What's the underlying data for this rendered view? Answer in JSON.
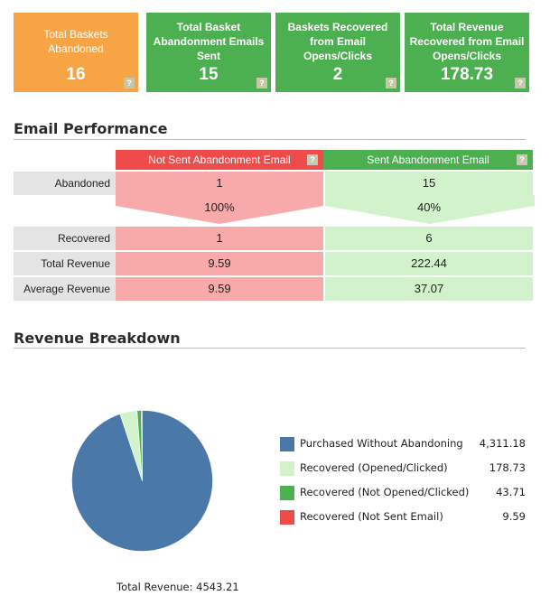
{
  "kpis": [
    {
      "title": "Total Baskets Abandoned",
      "value": "16",
      "color": "#f7a444",
      "help": "?"
    },
    {
      "title": "Total Basket Abandonment Emails Sent",
      "value": "15",
      "color": "#4caf50",
      "help": "?"
    },
    {
      "title": "Baskets Recovered from Email Opens/Clicks",
      "value": "2",
      "color": "#4caf50",
      "help": "?"
    },
    {
      "title": "Total Revenue Recovered from Email Opens/Clicks",
      "value": "178.73",
      "color": "#4caf50",
      "help": "?"
    }
  ],
  "email_performance": {
    "title": "Email Performance",
    "columns": [
      {
        "label": "Not Sent Abandonment Email",
        "help": "?",
        "color": "#ef4b4b"
      },
      {
        "label": "Sent Abandonment Email",
        "help": "?",
        "color": "#4caf50"
      }
    ],
    "abandoned": {
      "label": "Abandoned",
      "not_sent": "1",
      "sent": "15"
    },
    "recovery_rate": {
      "not_sent": "100%",
      "sent": "40%"
    },
    "rows": [
      {
        "label": "Recovered",
        "not_sent": "1",
        "sent": "6"
      },
      {
        "label": "Total Revenue",
        "not_sent": "9.59",
        "sent": "222.44"
      },
      {
        "label": "Average Revenue",
        "not_sent": "9.59",
        "sent": "37.07"
      }
    ]
  },
  "revenue_breakdown": {
    "title": "Revenue Breakdown",
    "total_label": "Total Revenue: 4543.21",
    "legend": [
      {
        "label": "Purchased Without Abandoning",
        "value": "4,311.18",
        "color": "#4a78a8"
      },
      {
        "label": "Recovered (Opened/Clicked)",
        "value": "178.73",
        "color": "#d2f2cc"
      },
      {
        "label": "Recovered (Not Opened/Clicked)",
        "value": "43.71",
        "color": "#4caf50"
      },
      {
        "label": "Recovered (Not Sent Email)",
        "value": "9.59",
        "color": "#ef4b4b"
      }
    ]
  },
  "chart_data": {
    "type": "pie",
    "title": "",
    "categories": [
      "Purchased Without Abandoning",
      "Recovered (Opened/Clicked)",
      "Recovered (Not Opened/Clicked)",
      "Recovered (Not Sent Email)"
    ],
    "values": [
      4311.18,
      178.73,
      43.71,
      9.59
    ],
    "colors": [
      "#4a78a8",
      "#d2f2cc",
      "#4caf50",
      "#ef4b4b"
    ],
    "legend": "right"
  }
}
